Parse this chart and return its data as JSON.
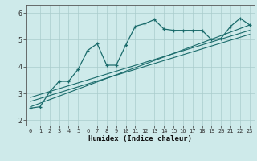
{
  "xlabel": "Humidex (Indice chaleur)",
  "background_color": "#ceeaea",
  "grid_color": "#aacccc",
  "line_color": "#1a6b6b",
  "xlim": [
    -0.5,
    23.5
  ],
  "ylim": [
    1.8,
    6.3
  ],
  "xticks": [
    0,
    1,
    2,
    3,
    4,
    5,
    6,
    7,
    8,
    9,
    10,
    11,
    12,
    13,
    14,
    15,
    16,
    17,
    18,
    19,
    20,
    21,
    22,
    23
  ],
  "yticks": [
    2,
    3,
    4,
    5,
    6
  ],
  "main_x": [
    0,
    1,
    2,
    3,
    4,
    5,
    6,
    7,
    8,
    9,
    10,
    11,
    12,
    13,
    14,
    15,
    16,
    17,
    18,
    19,
    20,
    21,
    22,
    23
  ],
  "main_y": [
    2.45,
    2.5,
    3.05,
    3.45,
    3.45,
    3.9,
    4.6,
    4.85,
    4.05,
    4.05,
    4.8,
    5.5,
    5.6,
    5.75,
    5.4,
    5.35,
    5.35,
    5.35,
    5.35,
    5.0,
    5.05,
    5.5,
    5.8,
    5.55
  ],
  "line1_x": [
    0,
    23
  ],
  "line1_y": [
    2.5,
    5.55
  ],
  "line2_x": [
    0,
    23
  ],
  "line2_y": [
    2.7,
    5.2
  ],
  "line3_x": [
    0,
    23
  ],
  "line3_y": [
    2.85,
    5.35
  ]
}
